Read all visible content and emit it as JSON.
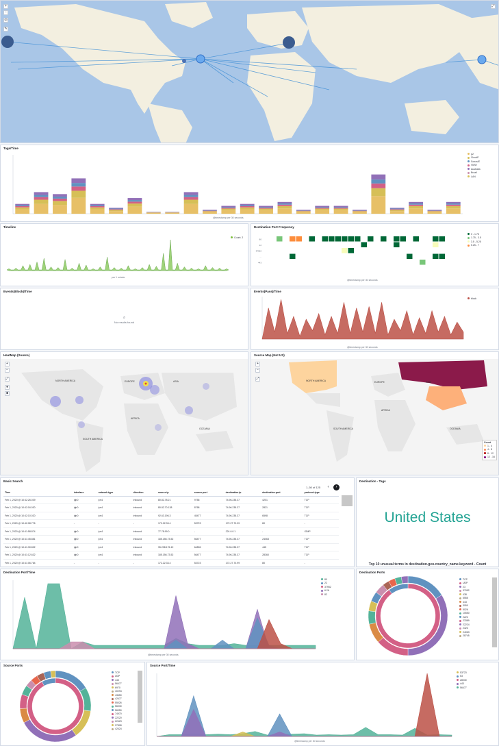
{
  "panels": {
    "tags_time": {
      "title": "Tags/Time",
      "xlabel": "@timestamp per 30 seconds",
      "ylabel": "Count",
      "legend": [
        {
          "name": "p2",
          "color": "#e7c067"
        },
        {
          "name": "CloudP",
          "color": "#d6bf57"
        },
        {
          "name": "Sonos/E",
          "color": "#6092c0"
        },
        {
          "name": "VMW",
          "color": "#d36086"
        },
        {
          "name": "Australia",
          "color": "#9170b8"
        },
        {
          "name": "Brazil",
          "color": "#ca8eae"
        },
        {
          "name": "LAN",
          "color": "#d6bf57"
        }
      ]
    },
    "timeline": {
      "title": "Timeline",
      "legend": "Count: 2",
      "xlabel": "per 1 minute"
    },
    "dest_port_freq": {
      "title": "Destination Port Frequency",
      "xlabel": "@timestamp per 30 seconds",
      "legend": [
        {
          "name": "0 - 1.75",
          "color": "#006837"
        },
        {
          "name": "1.75 - 3.5",
          "color": "#78c679"
        },
        {
          "name": "3.5 - 5.25",
          "color": "#f7fcb9"
        },
        {
          "name": "5.25 - 7",
          "color": "#fd8d3c"
        }
      ],
      "rows": [
        "80",
        "22",
        "37952",
        "...",
        "443"
      ]
    },
    "events_block": {
      "title": "Events(Block)/Time",
      "empty": "No results found"
    },
    "events_pass": {
      "title": "Events(Pass)/Time",
      "xlabel": "@timestamp per 30 seconds",
      "ylabel": "Count",
      "legend": [
        {
          "name": "block",
          "color": "#bc5147"
        }
      ]
    },
    "heatmap": {
      "title": "HeatMap (Source)",
      "labels": [
        "NORTH AMERICA",
        "EUROPE",
        "ASIA",
        "AFRICA",
        "SOUTH AMERICA",
        "OCEANIA"
      ]
    },
    "source_map": {
      "title": "Source Map (Not US)",
      "labels": [
        "NORTH AMERICA",
        "EUROPE",
        "ASIA",
        "AFRICA",
        "SOUTH AMERICA",
        "OCEANIA"
      ],
      "legend_title": "Count",
      "legend": [
        {
          "name": "1 - 4",
          "color": "#fdd49e"
        },
        {
          "name": "4 - 8",
          "color": "#fc8d59"
        },
        {
          "name": "8 - 12",
          "color": "#b30000"
        },
        {
          "name": "12 - 16",
          "color": "#7a0177"
        }
      ]
    },
    "basic_search": {
      "title": "Basic Search",
      "pager": "1–50 of 125",
      "columns": [
        "Time",
        "interface",
        "network.type",
        "direction",
        "source.ip",
        "source.port",
        "destination.ip",
        "destination.port",
        "protocol.type"
      ],
      "rows": [
        [
          "Feb 1, 2020 @ 10:42:26.039",
          "igb0",
          "ipv4",
          "inbound",
          "80.82.78.21",
          "9756",
          "74.96.235.37",
          "4201",
          "TCP"
        ],
        [
          "Feb 1, 2020 @ 10:42:16.030",
          "igb0",
          "ipv4",
          "inbound",
          "80.82.70.138",
          "8768",
          "74.96.235.37",
          "2821",
          "TCP"
        ],
        [
          "Feb 1, 2020 @ 10:42:10.020",
          "igb0",
          "ipv4",
          "inbound",
          "92.63.196.3",
          "45477",
          "74.96.235.37",
          "6598",
          "TCP"
        ],
        [
          "Feb 1, 2020 @ 10:42:08.776",
          "-",
          "-",
          "-",
          "172.22.33.4",
          "53723",
          "172.27.70.99",
          "80",
          "-"
        ],
        [
          "Feb 1, 2020 @ 10:41:58.874",
          "igb0",
          "ipv4",
          "inbound",
          "77.78.99.0",
          "-",
          "224.0.0.1",
          "-",
          "IGMP"
        ],
        [
          "Feb 1, 2020 @ 10:41:45.881",
          "igb0",
          "ipv4",
          "inbound",
          "185.156.73.52",
          "56477",
          "74.96.235.37",
          "24063",
          "TCP"
        ],
        [
          "Feb 1, 2020 @ 10:41:30.832",
          "igb0",
          "ipv4",
          "inbound",
          "95.238.176.19",
          "64896",
          "74.96.235.37",
          "445",
          "TCP"
        ],
        [
          "Feb 1, 2020 @ 10:41:12.632",
          "igb0",
          "ipv4",
          "inbound",
          "185.156.73.52",
          "56477",
          "74.96.235.37",
          "28360",
          "TCP"
        ],
        [
          "Feb 1, 2020 @ 10:41:06.764",
          "-",
          "-",
          "-",
          "172.22.33.4",
          "53723",
          "172.27.70.99",
          "80",
          "-"
        ]
      ]
    },
    "dest_tags": {
      "title": "Destination - Tags",
      "value": "United States",
      "caption": "Top 10 unusual terms in destination.geo.country_name.keyword - Count"
    },
    "dest_port_time": {
      "title": "Destination Port/Time",
      "xlabel": "@timestamp per 30 seconds",
      "ylabel": "Count",
      "legend": [
        {
          "name": "80",
          "color": "#54b399"
        },
        {
          "name": "22",
          "color": "#6092c0"
        },
        {
          "name": "37952",
          "color": "#d36086"
        },
        {
          "name": "6.26",
          "color": "#9170b8"
        },
        {
          "name": "82",
          "color": "#ca8eae"
        }
      ]
    },
    "dest_ports": {
      "title": "Destination Ports",
      "legend": [
        {
          "name": "TCP",
          "color": "#6092c0"
        },
        {
          "name": "UDP",
          "color": "#d36086"
        },
        {
          "name": "23",
          "color": "#9170b8"
        },
        {
          "name": "37952",
          "color": "#ca8eae"
        },
        {
          "name": "438",
          "color": "#d6bf57"
        },
        {
          "name": "5555",
          "color": "#b9a888"
        },
        {
          "name": "443",
          "color": "#da8b45"
        },
        {
          "name": "3050",
          "color": "#aa6556"
        },
        {
          "name": "5026",
          "color": "#e7664c"
        },
        {
          "name": "10550",
          "color": "#54b399"
        },
        {
          "name": "2222",
          "color": "#6092c0"
        },
        {
          "name": "23389",
          "color": "#d36086"
        },
        {
          "name": "22224",
          "color": "#9170b8"
        },
        {
          "name": "2323",
          "color": "#ca8eae"
        },
        {
          "name": "24063",
          "color": "#d6bf57"
        },
        {
          "name": "28745",
          "color": "#b9a888"
        }
      ]
    },
    "source_ports": {
      "title": "Source Ports",
      "legend": [
        {
          "name": "TCP",
          "color": "#6092c0"
        },
        {
          "name": "UDP",
          "color": "#d36086"
        },
        {
          "name": "443",
          "color": "#9170b8"
        },
        {
          "name": "56477",
          "color": "#ca8eae"
        },
        {
          "name": "6970",
          "color": "#d6bf57"
        },
        {
          "name": "40294",
          "color": "#b9a888"
        },
        {
          "name": "43650",
          "color": "#da8b45"
        },
        {
          "name": "42477",
          "color": "#aa6556"
        },
        {
          "name": "55026",
          "color": "#e7664c"
        },
        {
          "name": "56030",
          "color": "#54b399"
        },
        {
          "name": "56050",
          "color": "#6092c0"
        },
        {
          "name": "74970",
          "color": "#d36086"
        },
        {
          "name": "22220",
          "color": "#9170b8"
        },
        {
          "name": "22423",
          "color": "#ca8eae"
        },
        {
          "name": "27808",
          "color": "#d6bf57"
        },
        {
          "name": "42424",
          "color": "#b9a888"
        }
      ]
    },
    "source_port_time": {
      "title": "Source Port/Time",
      "xlabel": "@timestamp per 30 seconds",
      "ylabel": "Count",
      "legend": [
        {
          "name": "53723",
          "color": "#d6bf57"
        },
        {
          "name": "53",
          "color": "#6092c0"
        },
        {
          "name": "28030",
          "color": "#d36086"
        },
        {
          "name": "443",
          "color": "#9170b8"
        },
        {
          "name": "56477",
          "color": "#54b399"
        }
      ]
    }
  },
  "chart_data": [
    {
      "type": "bar",
      "id": "tags_time",
      "stacked": true,
      "values": [
        5,
        11,
        10,
        18,
        5,
        3,
        8,
        1,
        1,
        11,
        2,
        4,
        5,
        4,
        6,
        2,
        4,
        4,
        2,
        20,
        3,
        6,
        2,
        6
      ],
      "ylim": [
        0,
        30
      ]
    },
    {
      "type": "area",
      "id": "timeline"
    },
    {
      "type": "heatmap",
      "id": "dest_port_freq"
    },
    {
      "type": "area",
      "id": "events_pass",
      "ylim": [
        0,
        3
      ]
    },
    {
      "type": "area",
      "id": "dest_port_time",
      "ylim": [
        0,
        4
      ]
    },
    {
      "type": "pie",
      "id": "dest_ports"
    },
    {
      "type": "pie",
      "id": "source_ports"
    },
    {
      "type": "area",
      "id": "source_port_time",
      "ylim": [
        0,
        14
      ]
    }
  ]
}
